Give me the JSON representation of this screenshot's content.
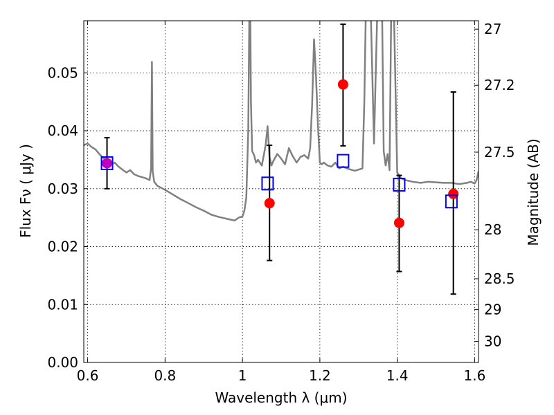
{
  "chart_data": {
    "type": "scatter",
    "title": "",
    "xlabel": "Wavelength  λ (μm)",
    "ylabel": "Flux  Fν  ( μJy )",
    "ylabel_right": "Magnitude (AB)",
    "xlim": [
      0.59,
      1.61
    ],
    "ylim": [
      0.0,
      0.059
    ],
    "grid": true,
    "colors": {
      "spectrum": "#808080",
      "observed": "#ff0000",
      "model": "#0000ff",
      "overlap": "#bf00bf",
      "errorbar": "#000000"
    },
    "x_ticks": [
      {
        "value": 0.6,
        "label": "0.6"
      },
      {
        "value": 0.8,
        "label": "0.8"
      },
      {
        "value": 1.0,
        "label": "1"
      },
      {
        "value": 1.2,
        "label": "1.2"
      },
      {
        "value": 1.4,
        "label": "1.4"
      },
      {
        "value": 1.6,
        "label": "1.6"
      }
    ],
    "y_ticks": [
      {
        "value": 0.0,
        "label": "0.00"
      },
      {
        "value": 0.01,
        "label": "0.01"
      },
      {
        "value": 0.02,
        "label": "0.02"
      },
      {
        "value": 0.03,
        "label": "0.03"
      },
      {
        "value": 0.04,
        "label": "0.04"
      },
      {
        "value": 0.05,
        "label": "0.05"
      }
    ],
    "right_ticks": [
      {
        "mag": 27.0,
        "label": "27"
      },
      {
        "mag": 27.2,
        "label": "27.2"
      },
      {
        "mag": 27.5,
        "label": "27.5"
      },
      {
        "mag": 28.0,
        "label": "28"
      },
      {
        "mag": 28.5,
        "label": "28.5"
      },
      {
        "mag": 29.0,
        "label": "29"
      },
      {
        "mag": 30.0,
        "label": "30"
      }
    ],
    "spectrum": {
      "x": [
        0.59,
        0.6,
        0.61,
        0.62,
        0.63,
        0.64,
        0.65,
        0.66,
        0.67,
        0.68,
        0.69,
        0.7,
        0.71,
        0.72,
        0.73,
        0.74,
        0.75,
        0.76,
        0.764,
        0.766,
        0.768,
        0.772,
        0.78,
        0.8,
        0.82,
        0.84,
        0.86,
        0.88,
        0.9,
        0.92,
        0.94,
        0.96,
        0.98,
        0.99,
        1.0,
        1.005,
        1.01,
        1.015,
        1.018,
        1.02,
        1.022,
        1.025,
        1.03,
        1.035,
        1.04,
        1.05,
        1.06,
        1.065,
        1.07,
        1.075,
        1.08,
        1.09,
        1.1,
        1.11,
        1.12,
        1.13,
        1.14,
        1.15,
        1.16,
        1.17,
        1.175,
        1.18,
        1.185,
        1.19,
        1.195,
        1.2,
        1.205,
        1.21,
        1.22,
        1.23,
        1.24,
        1.25,
        1.26,
        1.27,
        1.28,
        1.29,
        1.3,
        1.31,
        1.315,
        1.32,
        1.33,
        1.34,
        1.35,
        1.36,
        1.365,
        1.37,
        1.375,
        1.38,
        1.385,
        1.39,
        1.4,
        1.41,
        1.42,
        1.44,
        1.46,
        1.48,
        1.5,
        1.52,
        1.54,
        1.56,
        1.58,
        1.59,
        1.6,
        1.605,
        1.61
      ],
      "y": [
        0.0375,
        0.0378,
        0.0372,
        0.0368,
        0.036,
        0.0353,
        0.035,
        0.0342,
        0.0345,
        0.0338,
        0.0333,
        0.0328,
        0.0332,
        0.0325,
        0.0322,
        0.032,
        0.0318,
        0.0315,
        0.0335,
        0.0519,
        0.033,
        0.0312,
        0.0305,
        0.0298,
        0.029,
        0.0282,
        0.0275,
        0.0268,
        0.0262,
        0.0255,
        0.0251,
        0.0248,
        0.0245,
        0.025,
        0.0252,
        0.0262,
        0.0285,
        0.04,
        0.062,
        0.063,
        0.045,
        0.0365,
        0.0358,
        0.0345,
        0.035,
        0.034,
        0.0375,
        0.0408,
        0.0355,
        0.034,
        0.0348,
        0.036,
        0.0352,
        0.0342,
        0.037,
        0.0356,
        0.0345,
        0.0355,
        0.0358,
        0.0352,
        0.037,
        0.0445,
        0.0558,
        0.0495,
        0.041,
        0.0345,
        0.0342,
        0.0345,
        0.034,
        0.0338,
        0.0345,
        0.0335,
        0.0338,
        0.0335,
        0.0333,
        0.0331,
        0.0333,
        0.0335,
        0.045,
        0.065,
        0.065,
        0.0378,
        0.065,
        0.065,
        0.0365,
        0.034,
        0.036,
        0.0332,
        0.065,
        0.065,
        0.0328,
        0.0318,
        0.0315,
        0.0312,
        0.031,
        0.0312,
        0.0311,
        0.031,
        0.031,
        0.0308,
        0.031,
        0.0312,
        0.0309,
        0.0315,
        0.033
      ]
    },
    "error_bars": [
      {
        "x": 0.65,
        "low": 0.03,
        "high": 0.0388
      },
      {
        "x": 1.07,
        "low": 0.0176,
        "high": 0.0375
      },
      {
        "x": 1.26,
        "low": 0.0374,
        "high": 0.0584
      },
      {
        "x": 1.405,
        "low": 0.0157,
        "high": 0.0323
      },
      {
        "x": 1.545,
        "low": 0.0118,
        "high": 0.0467
      }
    ],
    "observed_points": {
      "x": [
        0.65,
        1.07,
        1.26,
        1.405,
        1.545
      ],
      "y": [
        0.0344,
        0.0275,
        0.048,
        0.0241,
        0.0291
      ]
    },
    "model_points": {
      "x": [
        0.65,
        1.065,
        1.26,
        1.405,
        1.54
      ],
      "y": [
        0.0344,
        0.0309,
        0.0348,
        0.0307,
        0.0278
      ]
    }
  }
}
